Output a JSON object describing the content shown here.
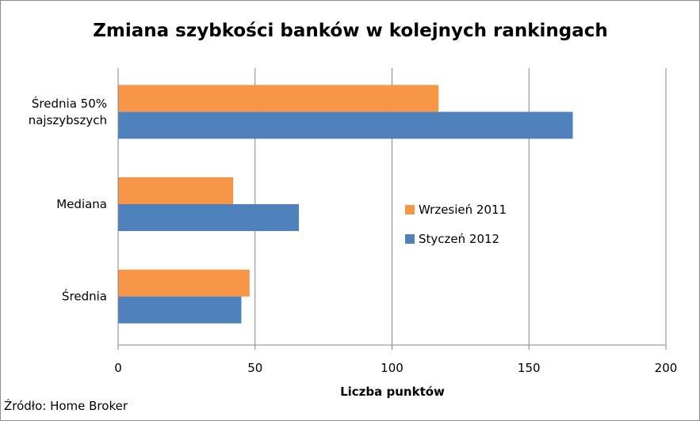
{
  "chart_data": {
    "type": "bar",
    "orientation": "horizontal",
    "title": "Zmiana szybkości banków w kolejnych rankingach",
    "xlabel": "Liczba punktów",
    "ylabel": "",
    "xlim": [
      0,
      200
    ],
    "x_ticks": [
      "0",
      "50",
      "100",
      "150",
      "200"
    ],
    "grid": "vertical",
    "legend_position": "right-center",
    "categories": [
      "Średnia 50% najszybszych",
      "Mediana",
      "Średnia"
    ],
    "category_lines": [
      [
        "Średnia 50%",
        "najszybszych"
      ],
      [
        "Mediana"
      ],
      [
        "Średnia"
      ]
    ],
    "series": [
      {
        "name": "Wrzesień 2011",
        "color": "#F79646",
        "values": [
          117,
          42,
          48
        ]
      },
      {
        "name": "Styczeń 2012",
        "color": "#4F81BD",
        "values": [
          166,
          66,
          45
        ]
      }
    ],
    "source": "Źródło: Home Broker"
  }
}
